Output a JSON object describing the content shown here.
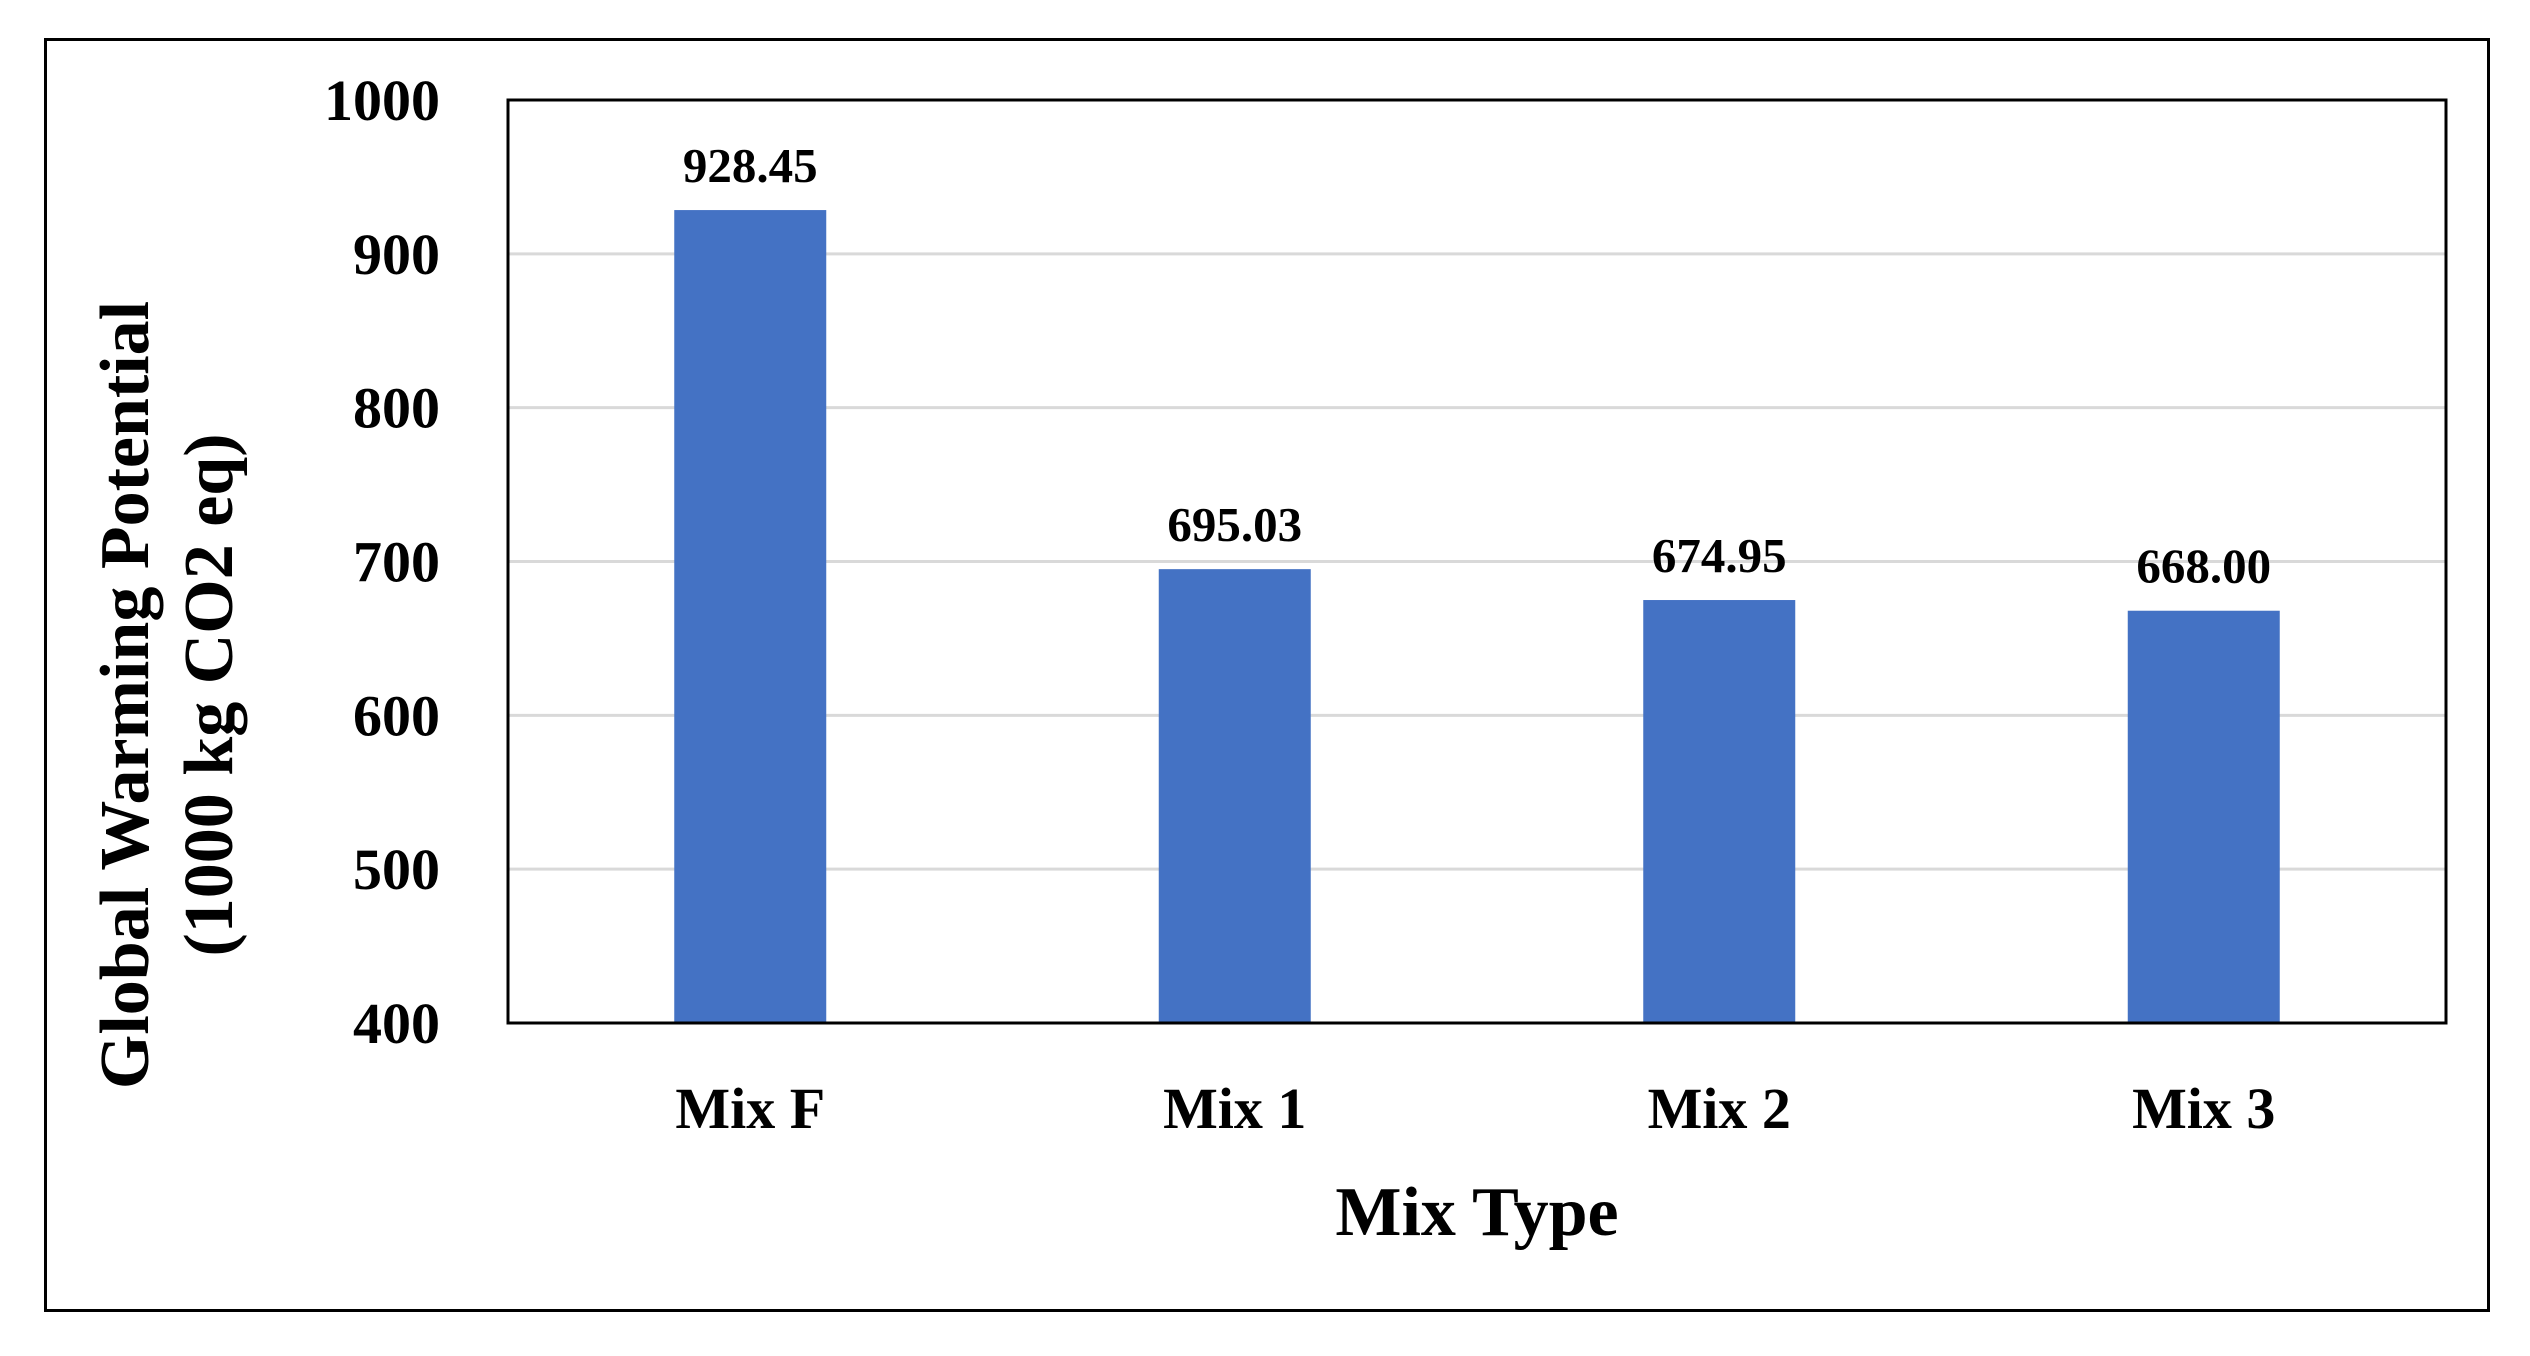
{
  "chart_data": {
    "type": "bar",
    "categories": [
      "Mix F",
      "Mix 1",
      "Mix 2",
      "Mix 3"
    ],
    "values": [
      928.45,
      695.03,
      674.95,
      668.0
    ],
    "data_labels": [
      "928.45",
      "695.03",
      "674.95",
      "668.00"
    ],
    "title": "",
    "xlabel": "Mix Type",
    "ylabel": "Global Warming Potential",
    "ylabel_line2": "(1000 kg CO2 eq)",
    "ylim": [
      400,
      1000
    ],
    "yticks": [
      400,
      500,
      600,
      700,
      800,
      900,
      1000
    ],
    "ytick_labels": [
      "400",
      "500",
      "600",
      "700",
      "800",
      "900",
      "1000"
    ],
    "grid": true,
    "legend": "none",
    "bar_color": "#4472C4",
    "grid_color": "#D9D9D9"
  }
}
